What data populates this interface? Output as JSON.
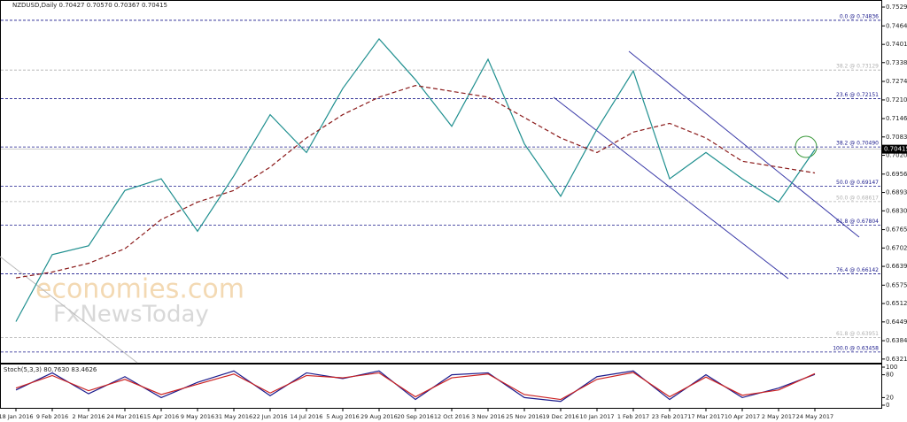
{
  "chart_data": [
    {
      "type": "line",
      "title": "NZDUSD,Daily  0.70427 0.70570 0.70367 0.70415",
      "watermark": [
        "economies.com",
        "FxNewsToday"
      ],
      "categories": [
        "18 Jan 2016",
        "9 Feb 2016",
        "2 Mar 2016",
        "24 Mar 2016",
        "15 Apr 2016",
        "9 May 2016",
        "31 May 2016",
        "22 Jun 2016",
        "14 Jul 2016",
        "5 Aug 2016",
        "29 Aug 2016",
        "20 Sep 2016",
        "12 Oct 2016",
        "3 Nov 2016",
        "25 Nov 2016",
        "19 Dec 2016",
        "10 Jan 2017",
        "1 Feb 2017",
        "23 Feb 2017",
        "17 Mar 2017",
        "10 Apr 2017",
        "2 May 2017",
        "24 May 2017"
      ],
      "series": [
        {
          "name": "NZDUSD",
          "color": "#1f8f8f",
          "values": [
            0.645,
            0.668,
            0.671,
            0.69,
            0.694,
            0.676,
            0.695,
            0.716,
            0.703,
            0.725,
            0.742,
            0.728,
            0.712,
            0.735,
            0.706,
            0.688,
            0.711,
            0.731,
            0.694,
            0.703,
            0.694,
            0.686,
            0.704
          ]
        },
        {
          "name": "MA",
          "color": "#8b1a1a",
          "values": [
            0.66,
            0.662,
            0.665,
            0.67,
            0.68,
            0.686,
            0.69,
            0.698,
            0.708,
            0.716,
            0.722,
            0.726,
            0.724,
            0.722,
            0.715,
            0.708,
            0.703,
            0.71,
            0.713,
            0.708,
            0.7,
            0.698,
            0.696
          ]
        }
      ],
      "current_price": 0.70415,
      "fib_levels": [
        {
          "label": "0.0 @ 0.74836",
          "value": 0.74836,
          "color": "#1a1a8c"
        },
        {
          "label": "38.2 @ 0.73129",
          "value": 0.73129,
          "color": "#b0b0b0"
        },
        {
          "label": "23.6 @ 0.72151",
          "value": 0.72151,
          "color": "#1a1a8c"
        },
        {
          "label": "38.2 @ 0.70490",
          "value": 0.7049,
          "color": "#1a1a8c"
        },
        {
          "label": "50.0 @ 0.69147",
          "value": 0.69147,
          "color": "#1a1a8c"
        },
        {
          "label": "50.0 @ 0.68617",
          "value": 0.68617,
          "color": "#b0b0b0"
        },
        {
          "label": "61.8 @ 0.67804",
          "value": 0.67804,
          "color": "#1a1a8c"
        },
        {
          "label": "76.4 @ 0.66142",
          "value": 0.66142,
          "color": "#1a1a8c"
        },
        {
          "label": "61.8 @ 0.63951",
          "value": 0.63951,
          "color": "#b0b0b0"
        },
        {
          "label": "100.0 @ 0.63458",
          "value": 0.63458,
          "color": "#1a1a8c"
        }
      ],
      "ylim": [
        0.6315,
        0.7529
      ],
      "yticks": [
        {
          "value": 0.7529,
          "label": "0.75290"
        },
        0.74645,
        0.7401,
        {
          "value": 0.73385,
          "label": "0.73385"
        },
        {
          "value": 0.7274,
          "label": "0.72740"
        },
        0.72105,
        0.71465,
        0.70835,
        0.70205,
        {
          "value": 0.6956,
          "label": "0.69560"
        },
        {
          "value": 0.6893,
          "label": "0.68930"
        },
        {
          "value": 0.683,
          "label": "0.68300"
        },
        0.67655,
        0.67025,
        0.66395,
        {
          "value": 0.6575,
          "label": "0.65750"
        },
        {
          "value": 0.6512,
          "label": "0.65120"
        },
        {
          "value": 0.6449,
          "label": "0.64490"
        },
        0.63845,
        0.63215
      ]
    },
    {
      "type": "line",
      "title": "Stoch(5,3,3) 80.7630 83.4626",
      "series": [
        {
          "name": "%K",
          "color": "#1a1a8c",
          "values": [
            40,
            85,
            30,
            75,
            20,
            60,
            90,
            25,
            85,
            70,
            90,
            15,
            80,
            85,
            20,
            10,
            75,
            90,
            15,
            80,
            20,
            45,
            81
          ]
        },
        {
          "name": "%D",
          "color": "#cc2222",
          "values": [
            45,
            78,
            38,
            68,
            28,
            55,
            82,
            32,
            78,
            72,
            85,
            22,
            72,
            82,
            28,
            15,
            68,
            86,
            22,
            74,
            26,
            40,
            83
          ]
        }
      ],
      "ylim": [
        0,
        100
      ],
      "yticks": [
        100,
        80,
        20,
        0
      ]
    }
  ]
}
